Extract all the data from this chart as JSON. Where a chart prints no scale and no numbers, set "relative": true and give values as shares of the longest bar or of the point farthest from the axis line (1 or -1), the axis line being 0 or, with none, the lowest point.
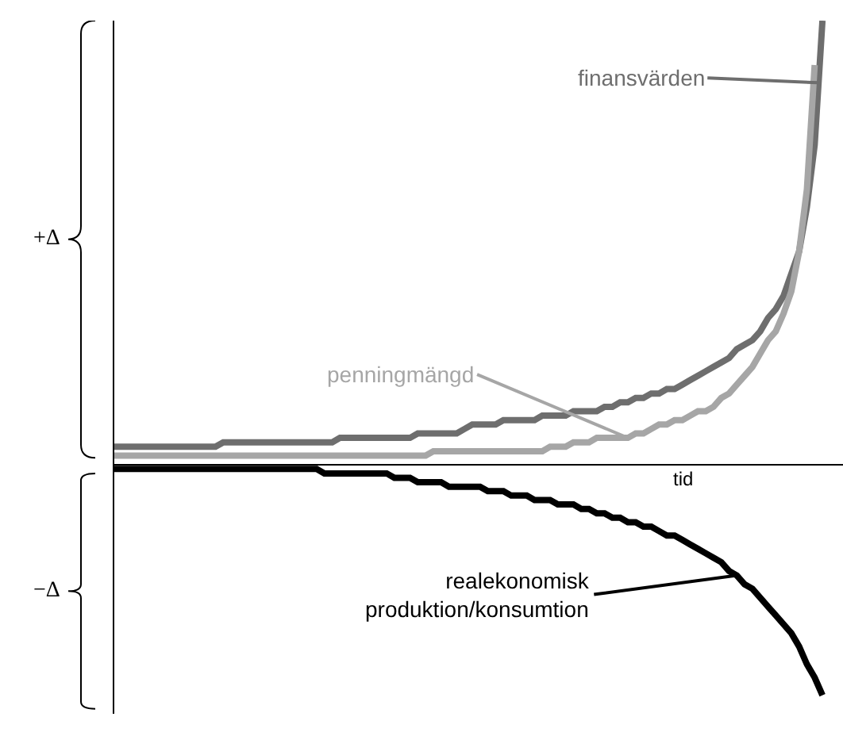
{
  "chart_data": {
    "type": "line",
    "relative": true,
    "xlabel": "tid",
    "marker": "none",
    "line_style": "solid",
    "categories": [
      null,
      null,
      null,
      null,
      null,
      null,
      null,
      null,
      null,
      null,
      null,
      null,
      null,
      null,
      null,
      null,
      null,
      null,
      null,
      null,
      null,
      null,
      null,
      null,
      null,
      null,
      null,
      null,
      null,
      null,
      null,
      null,
      null,
      null,
      null,
      null,
      null,
      null,
      null,
      null,
      null,
      null,
      null,
      null,
      null,
      null,
      null,
      null,
      null,
      null,
      null,
      null,
      null,
      null,
      null,
      null,
      null,
      null,
      null,
      null,
      null,
      null,
      null,
      null,
      null,
      null,
      null,
      null,
      null,
      null,
      null,
      null,
      null,
      null,
      null,
      null,
      null,
      null,
      null,
      null,
      null,
      null,
      null,
      null,
      null,
      null,
      null,
      null,
      null,
      null,
      null,
      null
    ],
    "series": [
      {
        "name": "finansvärden",
        "color": "#6e6e6e",
        "values": [
          0.04,
          0.04,
          0.04,
          0.04,
          0.04,
          0.04,
          0.04,
          0.04,
          0.04,
          0.04,
          0.04,
          0.04,
          0.04,
          0.04,
          0.05,
          0.05,
          0.05,
          0.05,
          0.05,
          0.05,
          0.05,
          0.05,
          0.05,
          0.05,
          0.05,
          0.05,
          0.05,
          0.05,
          0.05,
          0.06,
          0.06,
          0.06,
          0.06,
          0.06,
          0.06,
          0.06,
          0.06,
          0.06,
          0.06,
          0.07,
          0.07,
          0.07,
          0.07,
          0.07,
          0.07,
          0.08,
          0.09,
          0.09,
          0.09,
          0.09,
          0.1,
          0.1,
          0.1,
          0.1,
          0.1,
          0.11,
          0.11,
          0.11,
          0.11,
          0.12,
          0.12,
          0.12,
          0.12,
          0.13,
          0.13,
          0.14,
          0.14,
          0.15,
          0.15,
          0.16,
          0.16,
          0.17,
          0.17,
          0.18,
          0.19,
          0.2,
          0.21,
          0.22,
          0.23,
          0.24,
          0.26,
          0.27,
          0.28,
          0.3,
          0.33,
          0.35,
          0.38,
          0.43,
          0.48,
          0.58,
          0.72,
          1.0
        ]
      },
      {
        "name": "penningmängd",
        "color": "#a6a6a6",
        "values": [
          0.02,
          0.02,
          0.02,
          0.02,
          0.02,
          0.02,
          0.02,
          0.02,
          0.02,
          0.02,
          0.02,
          0.02,
          0.02,
          0.02,
          0.02,
          0.02,
          0.02,
          0.02,
          0.02,
          0.02,
          0.02,
          0.02,
          0.02,
          0.02,
          0.02,
          0.02,
          0.02,
          0.02,
          0.02,
          0.02,
          0.02,
          0.02,
          0.02,
          0.02,
          0.02,
          0.02,
          0.02,
          0.02,
          0.02,
          0.02,
          0.02,
          0.03,
          0.03,
          0.03,
          0.03,
          0.03,
          0.03,
          0.03,
          0.03,
          0.03,
          0.03,
          0.03,
          0.03,
          0.03,
          0.03,
          0.03,
          0.04,
          0.04,
          0.04,
          0.05,
          0.05,
          0.05,
          0.06,
          0.06,
          0.06,
          0.06,
          0.06,
          0.07,
          0.07,
          0.08,
          0.09,
          0.09,
          0.1,
          0.1,
          0.11,
          0.12,
          0.12,
          0.13,
          0.15,
          0.16,
          0.18,
          0.2,
          0.22,
          0.25,
          0.28,
          0.3,
          0.34,
          0.39,
          0.48,
          0.62,
          0.9,
          null
        ]
      },
      {
        "name": "realekonomisk\nproduktion/konsumtion",
        "color": "#000000",
        "values": [
          -0.01,
          -0.01,
          -0.01,
          -0.01,
          -0.01,
          -0.01,
          -0.01,
          -0.01,
          -0.01,
          -0.01,
          -0.01,
          -0.01,
          -0.01,
          -0.01,
          -0.01,
          -0.01,
          -0.01,
          -0.01,
          -0.01,
          -0.01,
          -0.01,
          -0.01,
          -0.01,
          -0.01,
          -0.01,
          -0.01,
          -0.01,
          -0.02,
          -0.02,
          -0.02,
          -0.02,
          -0.02,
          -0.02,
          -0.02,
          -0.02,
          -0.02,
          -0.03,
          -0.03,
          -0.03,
          -0.04,
          -0.04,
          -0.04,
          -0.04,
          -0.05,
          -0.05,
          -0.05,
          -0.05,
          -0.05,
          -0.06,
          -0.06,
          -0.06,
          -0.07,
          -0.07,
          -0.07,
          -0.08,
          -0.08,
          -0.08,
          -0.09,
          -0.09,
          -0.09,
          -0.1,
          -0.1,
          -0.11,
          -0.11,
          -0.12,
          -0.12,
          -0.13,
          -0.13,
          -0.14,
          -0.14,
          -0.15,
          -0.16,
          -0.16,
          -0.17,
          -0.18,
          -0.19,
          -0.2,
          -0.21,
          -0.22,
          -0.24,
          -0.25,
          -0.27,
          -0.28,
          -0.3,
          -0.32,
          -0.34,
          -0.36,
          -0.38,
          -0.41,
          -0.45,
          -0.48,
          -0.52
        ]
      }
    ],
    "annotations": [
      "+Δ",
      "−Δ"
    ]
  }
}
